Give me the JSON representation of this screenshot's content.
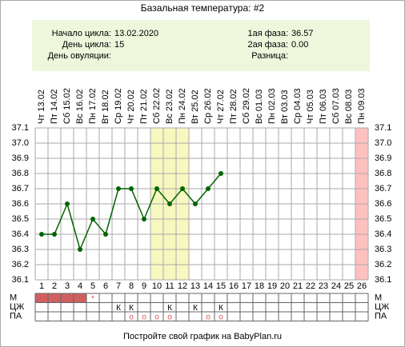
{
  "chart_data": {
    "type": "line",
    "title": "Базальная температура: #2",
    "info_left": [
      {
        "label": "Начало цикла:",
        "value": "13.02.2020"
      },
      {
        "label": "День цикла:",
        "value": "15"
      },
      {
        "label": "День овуляции:"
      }
    ],
    "info_right": [
      {
        "label": "1ая фаза:",
        "value": "36.57"
      },
      {
        "label": "2ая фаза:",
        "value": "0.00"
      },
      {
        "label": "Разница:"
      }
    ],
    "categories": [
      "Чт 13.02",
      "Пт 14.02",
      "Сб 15.02",
      "Вс 16.02",
      "Пн 17.02",
      "Вт 18.02",
      "Ср 19.02",
      "Чт 20.02",
      "Пт 21.02",
      "Сб 22.02",
      "Вс 23.02",
      "Пн 24.02",
      "Вт 25.02",
      "Ср 26.02",
      "Чт 27.02",
      "Пт 28.02",
      "Сб 29.02",
      "Вс 01.03",
      "Пн 02.03",
      "Вт 03.03",
      "Ср 04.03",
      "Чт 05.03",
      "Пт 06.03",
      "Сб 07.03",
      "Вс 08.03",
      "Пн 09.03"
    ],
    "day_numbers": [
      1,
      2,
      3,
      4,
      5,
      6,
      7,
      8,
      9,
      10,
      11,
      12,
      13,
      14,
      15,
      16,
      17,
      18,
      19,
      20,
      21,
      22,
      23,
      24,
      25,
      26
    ],
    "values": [
      36.4,
      36.4,
      36.6,
      36.3,
      36.5,
      36.4,
      36.7,
      36.7,
      36.5,
      36.7,
      36.6,
      36.7,
      36.6,
      36.7,
      36.8,
      null,
      null,
      null,
      null,
      null,
      null,
      null,
      null,
      null,
      null,
      null
    ],
    "color": "#006400",
    "ylim": [
      36.1,
      37.1
    ],
    "yticks": [
      36.1,
      36.2,
      36.3,
      36.4,
      36.5,
      36.6,
      36.7,
      36.8,
      36.9,
      {
        "value": 37,
        "label": "37.0"
      },
      37.1
    ],
    "grid": true,
    "highlight_days": [
      10,
      11,
      12
    ],
    "highlight_color": "#f7f7c0",
    "marked_days": [
      26
    ],
    "marked_color": "#ffc0c0",
    "rows": [
      {
        "name": "М",
        "filled_days": [
          1,
          2,
          3,
          4
        ],
        "fill_color": "#d06060",
        "marks": [
          {
            "day": 5,
            "text": "*",
            "color": "#e05050"
          }
        ]
      },
      {
        "name": "ЦЖ",
        "marks": [
          {
            "day": 7,
            "text": "К"
          },
          {
            "day": 8,
            "text": "К"
          },
          {
            "day": 11,
            "text": "К"
          },
          {
            "day": 13,
            "text": "К"
          },
          {
            "day": 15,
            "text": "К"
          }
        ]
      },
      {
        "name": "ПА",
        "marks": [
          {
            "day": 8,
            "text": "о",
            "color": "#e05050"
          },
          {
            "day": 9,
            "text": "о",
            "color": "#e05050"
          },
          {
            "day": 10,
            "text": "о",
            "color": "#e05050"
          },
          {
            "day": 11,
            "text": "о",
            "color": "#e05050"
          },
          {
            "day": 14,
            "text": "о",
            "color": "#e05050"
          },
          {
            "day": 15,
            "text": "о",
            "color": "#e05050"
          }
        ]
      }
    ],
    "footer": "Постройте свой график на BabyPlan.ru"
  }
}
